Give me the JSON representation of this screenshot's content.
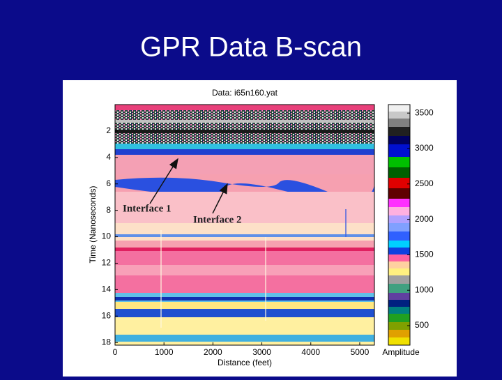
{
  "header": {
    "title": "GPR Data B-scan"
  },
  "chart_data": {
    "type": "image",
    "title": "Data:  i65n160.yat",
    "x_label": "Distance (feet)",
    "y_label": "Time (Nanoseconds)",
    "xlim": [
      0,
      5300
    ],
    "xticks": [
      0,
      1000,
      2000,
      3000,
      4000,
      5000
    ],
    "ylim": [
      0,
      18.2
    ],
    "y_inverted": true,
    "yticks": [
      2,
      4,
      6,
      8,
      10,
      12,
      14,
      16,
      18
    ],
    "colorbar": {
      "label": "Amplitude",
      "lim": [
        225,
        3620
      ],
      "ticks": [
        500,
        1000,
        1500,
        2000,
        2500,
        3000,
        3500
      ]
    },
    "annotations": [
      {
        "text": "Interface 1"
      },
      {
        "text": "Interface 2"
      }
    ]
  }
}
